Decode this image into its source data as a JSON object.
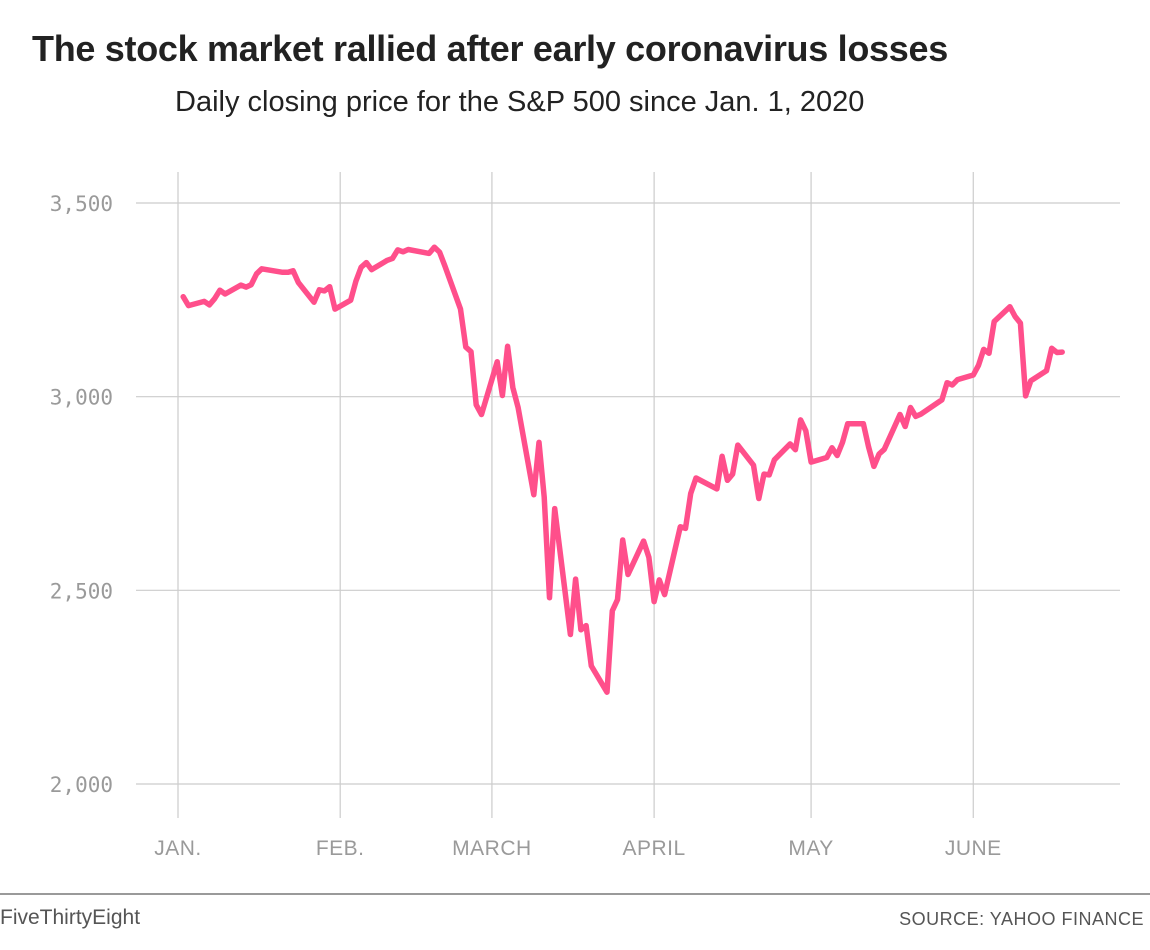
{
  "title": "The stock market rallied after early coronavirus losses",
  "subtitle": "Daily closing price for the S&P 500 since Jan. 1, 2020",
  "brand": "FiveThirtyEight",
  "source": "SOURCE: YAHOO FINANCE",
  "colors": {
    "line": "#ff4f8b",
    "grid": "#cccccc",
    "tick_text": "#9a9a9a",
    "title": "#222222"
  },
  "chart_data": {
    "type": "line",
    "ylim": [
      2000,
      3500
    ],
    "y_ticks": [
      {
        "value": 3500,
        "label": "3,500"
      },
      {
        "value": 3000,
        "label": "3,000"
      },
      {
        "value": 2500,
        "label": "2,500"
      },
      {
        "value": 2000,
        "label": "2,000"
      }
    ],
    "x_ticks": [
      {
        "date": "2020-01-01",
        "label": "JAN."
      },
      {
        "date": "2020-02-01",
        "label": "FEB."
      },
      {
        "date": "2020-03-01",
        "label": "MARCH"
      },
      {
        "date": "2020-04-01",
        "label": "APRIL"
      },
      {
        "date": "2020-05-01",
        "label": "MAY"
      },
      {
        "date": "2020-06-01",
        "label": "JUNE"
      }
    ],
    "grid": true,
    "series": [
      {
        "values": [
          [
            "2020-01-02",
            3258
          ],
          [
            "2020-01-03",
            3235
          ],
          [
            "2020-01-06",
            3246
          ],
          [
            "2020-01-07",
            3237
          ],
          [
            "2020-01-08",
            3253
          ],
          [
            "2020-01-09",
            3275
          ],
          [
            "2020-01-10",
            3265
          ],
          [
            "2020-01-13",
            3288
          ],
          [
            "2020-01-14",
            3283
          ],
          [
            "2020-01-15",
            3289
          ],
          [
            "2020-01-16",
            3317
          ],
          [
            "2020-01-17",
            3330
          ],
          [
            "2020-01-21",
            3321
          ],
          [
            "2020-01-22",
            3321
          ],
          [
            "2020-01-23",
            3325
          ],
          [
            "2020-01-24",
            3295
          ],
          [
            "2020-01-27",
            3244
          ],
          [
            "2020-01-28",
            3276
          ],
          [
            "2020-01-29",
            3273
          ],
          [
            "2020-01-30",
            3284
          ],
          [
            "2020-01-31",
            3226
          ],
          [
            "2020-02-03",
            3249
          ],
          [
            "2020-02-04",
            3298
          ],
          [
            "2020-02-05",
            3334
          ],
          [
            "2020-02-06",
            3346
          ],
          [
            "2020-02-07",
            3328
          ],
          [
            "2020-02-10",
            3352
          ],
          [
            "2020-02-11",
            3357
          ],
          [
            "2020-02-12",
            3379
          ],
          [
            "2020-02-13",
            3374
          ],
          [
            "2020-02-14",
            3380
          ],
          [
            "2020-02-18",
            3370
          ],
          [
            "2020-02-19",
            3386
          ],
          [
            "2020-02-20",
            3373
          ],
          [
            "2020-02-21",
            3338
          ],
          [
            "2020-02-24",
            3226
          ],
          [
            "2020-02-25",
            3128
          ],
          [
            "2020-02-26",
            3116
          ],
          [
            "2020-02-27",
            2979
          ],
          [
            "2020-02-28",
            2954
          ],
          [
            "2020-03-02",
            3090
          ],
          [
            "2020-03-03",
            3003
          ],
          [
            "2020-03-04",
            3130
          ],
          [
            "2020-03-05",
            3024
          ],
          [
            "2020-03-06",
            2972
          ],
          [
            "2020-03-09",
            2747
          ],
          [
            "2020-03-10",
            2882
          ],
          [
            "2020-03-11",
            2741
          ],
          [
            "2020-03-12",
            2481
          ],
          [
            "2020-03-13",
            2711
          ],
          [
            "2020-03-16",
            2386
          ],
          [
            "2020-03-17",
            2529
          ],
          [
            "2020-03-18",
            2398
          ],
          [
            "2020-03-19",
            2409
          ],
          [
            "2020-03-20",
            2305
          ],
          [
            "2020-03-23",
            2237
          ],
          [
            "2020-03-24",
            2447
          ],
          [
            "2020-03-25",
            2476
          ],
          [
            "2020-03-26",
            2630
          ],
          [
            "2020-03-27",
            2541
          ],
          [
            "2020-03-30",
            2627
          ],
          [
            "2020-03-31",
            2585
          ],
          [
            "2020-04-01",
            2471
          ],
          [
            "2020-04-02",
            2527
          ],
          [
            "2020-04-03",
            2489
          ],
          [
            "2020-04-06",
            2664
          ],
          [
            "2020-04-07",
            2660
          ],
          [
            "2020-04-08",
            2750
          ],
          [
            "2020-04-09",
            2790
          ],
          [
            "2020-04-13",
            2762
          ],
          [
            "2020-04-14",
            2846
          ],
          [
            "2020-04-15",
            2784
          ],
          [
            "2020-04-16",
            2800
          ],
          [
            "2020-04-17",
            2875
          ],
          [
            "2020-04-20",
            2823
          ],
          [
            "2020-04-21",
            2737
          ],
          [
            "2020-04-22",
            2800
          ],
          [
            "2020-04-23",
            2798
          ],
          [
            "2020-04-24",
            2837
          ],
          [
            "2020-04-27",
            2878
          ],
          [
            "2020-04-28",
            2863
          ],
          [
            "2020-04-29",
            2940
          ],
          [
            "2020-04-30",
            2912
          ],
          [
            "2020-05-01",
            2831
          ],
          [
            "2020-05-04",
            2843
          ],
          [
            "2020-05-05",
            2868
          ],
          [
            "2020-05-06",
            2848
          ],
          [
            "2020-05-07",
            2882
          ],
          [
            "2020-05-08",
            2930
          ],
          [
            "2020-05-11",
            2930
          ],
          [
            "2020-05-12",
            2870
          ],
          [
            "2020-05-13",
            2820
          ],
          [
            "2020-05-14",
            2852
          ],
          [
            "2020-05-15",
            2864
          ],
          [
            "2020-05-18",
            2954
          ],
          [
            "2020-05-19",
            2923
          ],
          [
            "2020-05-20",
            2972
          ],
          [
            "2020-05-21",
            2949
          ],
          [
            "2020-05-22",
            2955
          ],
          [
            "2020-05-26",
            2992
          ],
          [
            "2020-05-27",
            3036
          ],
          [
            "2020-05-28",
            3030
          ],
          [
            "2020-05-29",
            3044
          ],
          [
            "2020-06-01",
            3056
          ],
          [
            "2020-06-02",
            3081
          ],
          [
            "2020-06-03",
            3122
          ],
          [
            "2020-06-04",
            3112
          ],
          [
            "2020-06-05",
            3194
          ],
          [
            "2020-06-08",
            3232
          ],
          [
            "2020-06-09",
            3207
          ],
          [
            "2020-06-10",
            3190
          ],
          [
            "2020-06-11",
            3002
          ],
          [
            "2020-06-12",
            3041
          ],
          [
            "2020-06-15",
            3067
          ],
          [
            "2020-06-16",
            3125
          ],
          [
            "2020-06-17",
            3114
          ],
          [
            "2020-06-18",
            3115
          ]
        ]
      }
    ]
  }
}
